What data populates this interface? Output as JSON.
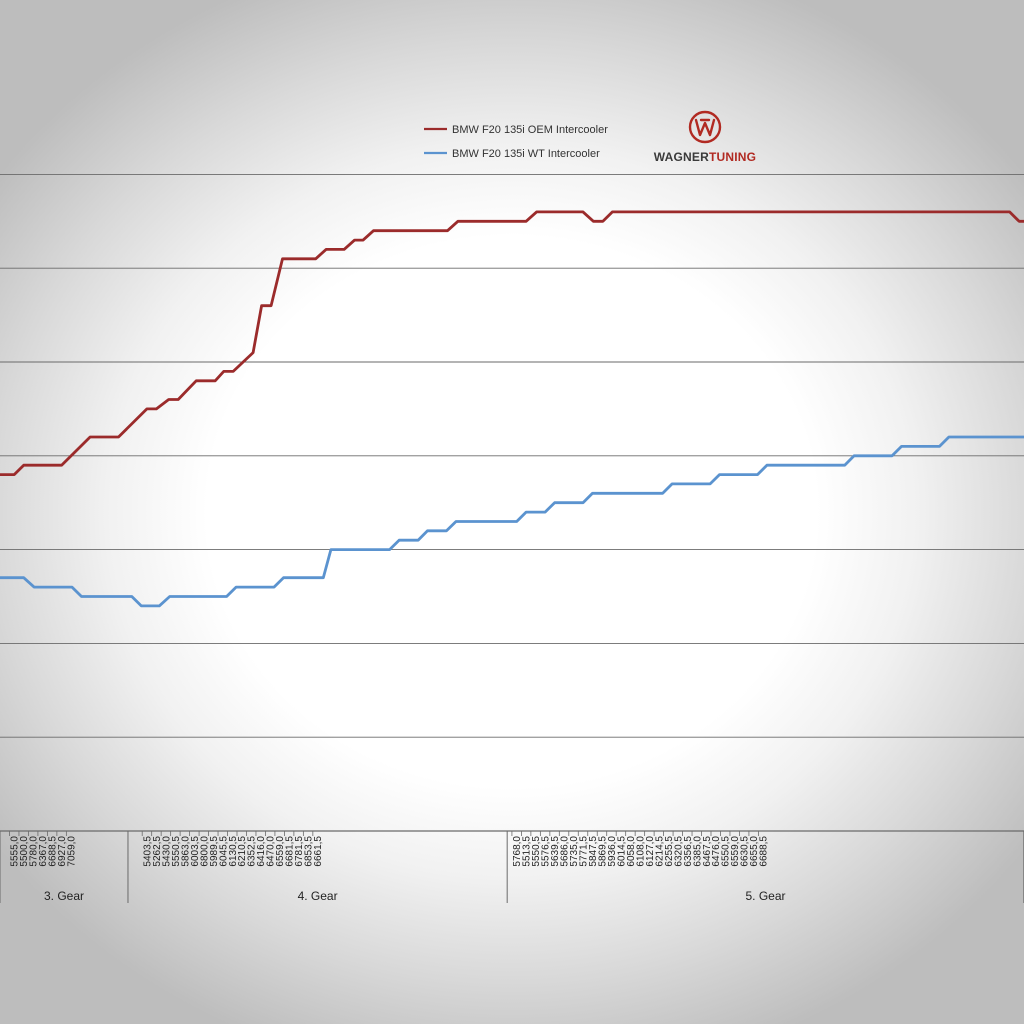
{
  "colors": {
    "oem": "#9b2b2b",
    "wt": "#5b93cf",
    "gridline": "#6a6a6a",
    "logo_red": "#b12a22",
    "logo_dark": "#3a3a3a"
  },
  "logo": {
    "name": "wagner-tuning-logo",
    "text_dark": "WAGNER",
    "text_red": "TUNING"
  },
  "chart_data": {
    "type": "line",
    "title": "",
    "xlabel": "",
    "ylabel": "",
    "grid": true,
    "legend_position": "top-center",
    "x_index_range": [
      0,
      108
    ],
    "ylim": [
      0,
      7
    ],
    "x_tick_labels": [
      "5555,0",
      "5500,0",
      "5780,0",
      "6367,0",
      "6688,5",
      "6927,0",
      "7059,0",
      "5403,5",
      "5262,5",
      "5430,0",
      "5550,5",
      "5863,0",
      "6003,5",
      "6800,0",
      "5989,5",
      "6045,5",
      "6130,5",
      "6210,5",
      "6352,5",
      "6416,0",
      "6470,0",
      "6559,0",
      "6681,5",
      "6781,5",
      "6853,5",
      "6661,5",
      "5768,0",
      "5513,5",
      "5550,5",
      "5576,5",
      "5639,5",
      "5686,0",
      "5735,0",
      "5771,5",
      "5847,5",
      "5869,5",
      "5936,0",
      "6014,5",
      "6058,0",
      "6108,0",
      "6127,0",
      "6214,5",
      "6255,5",
      "6320,5",
      "6356,5",
      "6385,0",
      "6467,5",
      "6476,0",
      "6550,5",
      "6559,0",
      "6630,5",
      "6655,0",
      "6688,5"
    ],
    "gears": [
      {
        "label": "3. Gear",
        "from": 0,
        "to": 13.5
      },
      {
        "label": "4. Gear",
        "from": 13.5,
        "to": 53.5
      },
      {
        "label": "5. Gear",
        "from": 53.5,
        "to": 108
      }
    ],
    "series": [
      {
        "name": "BMW F20 135i OEM Intercooler",
        "points": [
          [
            0,
            3.8
          ],
          [
            1.5,
            3.8
          ],
          [
            2.5,
            3.9
          ],
          [
            6.5,
            3.9
          ],
          [
            9.5,
            4.2
          ],
          [
            12.5,
            4.2
          ],
          [
            15.5,
            4.5
          ],
          [
            16.5,
            4.5
          ],
          [
            17.8,
            4.6
          ],
          [
            18.8,
            4.6
          ],
          [
            20.7,
            4.8
          ],
          [
            22.7,
            4.8
          ],
          [
            23.6,
            4.9
          ],
          [
            24.6,
            4.9
          ],
          [
            26.7,
            5.1
          ],
          [
            27.6,
            5.6
          ],
          [
            28.6,
            5.6
          ],
          [
            29.8,
            6.1
          ],
          [
            33.3,
            6.1
          ],
          [
            34.4,
            6.2
          ],
          [
            36.3,
            6.2
          ],
          [
            37.4,
            6.3
          ],
          [
            38.3,
            6.3
          ],
          [
            39.4,
            6.4
          ],
          [
            47.2,
            6.4
          ],
          [
            48.3,
            6.5
          ],
          [
            55.5,
            6.5
          ],
          [
            56.6,
            6.6
          ],
          [
            61.5,
            6.6
          ],
          [
            62.6,
            6.5
          ],
          [
            63.6,
            6.5
          ],
          [
            64.6,
            6.6
          ],
          [
            106.5,
            6.6
          ],
          [
            107.5,
            6.5
          ],
          [
            108,
            6.5
          ]
        ]
      },
      {
        "name": "BMW F20 135i WT Intercooler",
        "points": [
          [
            0,
            2.7
          ],
          [
            2.5,
            2.7
          ],
          [
            3.6,
            2.6
          ],
          [
            7.6,
            2.6
          ],
          [
            8.6,
            2.5
          ],
          [
            13.9,
            2.5
          ],
          [
            14.9,
            2.4
          ],
          [
            16.8,
            2.4
          ],
          [
            17.9,
            2.5
          ],
          [
            23.9,
            2.5
          ],
          [
            24.9,
            2.6
          ],
          [
            28.9,
            2.6
          ],
          [
            29.9,
            2.7
          ],
          [
            34.1,
            2.7
          ],
          [
            34.9,
            3.0
          ],
          [
            41.1,
            3.0
          ],
          [
            42.1,
            3.1
          ],
          [
            44.1,
            3.1
          ],
          [
            45.1,
            3.2
          ],
          [
            47.1,
            3.2
          ],
          [
            48.1,
            3.3
          ],
          [
            54.5,
            3.3
          ],
          [
            55.5,
            3.4
          ],
          [
            57.5,
            3.4
          ],
          [
            58.5,
            3.5
          ],
          [
            61.5,
            3.5
          ],
          [
            62.5,
            3.6
          ],
          [
            69.9,
            3.6
          ],
          [
            70.9,
            3.7
          ],
          [
            74.9,
            3.7
          ],
          [
            75.9,
            3.8
          ],
          [
            79.9,
            3.8
          ],
          [
            80.9,
            3.9
          ],
          [
            89.1,
            3.9
          ],
          [
            90.1,
            4.0
          ],
          [
            94.1,
            4.0
          ],
          [
            95.1,
            4.1
          ],
          [
            99.1,
            4.1
          ],
          [
            100.1,
            4.2
          ],
          [
            108,
            4.2
          ]
        ]
      }
    ]
  }
}
